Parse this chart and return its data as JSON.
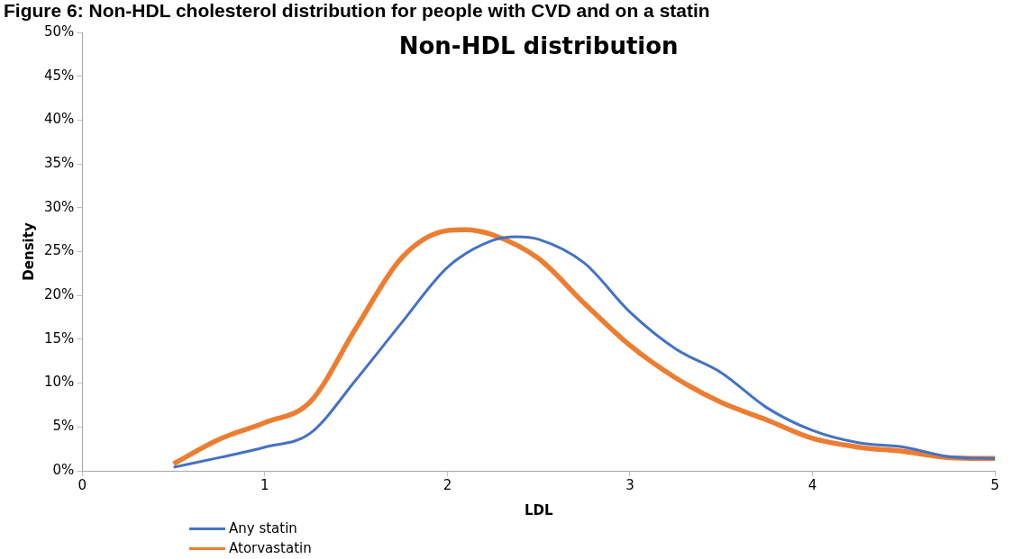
{
  "chart_data": {
    "type": "line",
    "title": "Non-HDL distribution",
    "xlabel": "LDL",
    "ylabel": "Density",
    "annotations": [
      "Figure 6: Non-HDL cholesterol distribution for people with CVD and on a statin"
    ],
    "xlim": [
      0,
      5
    ],
    "xticks": [
      0,
      1,
      2,
      3,
      4,
      5
    ],
    "ylim": [
      0,
      50
    ],
    "yticks": [
      {
        "value": 0,
        "label": "0%"
      },
      {
        "value": 5,
        "label": "5%"
      },
      {
        "value": 10,
        "label": "10%"
      },
      {
        "value": 15,
        "label": "15%"
      },
      {
        "value": 20,
        "label": "20%"
      },
      {
        "value": 25,
        "label": "25%"
      },
      {
        "value": 30,
        "label": "30%"
      },
      {
        "value": 35,
        "label": "35%"
      },
      {
        "value": 40,
        "label": "40%"
      },
      {
        "value": 45,
        "label": "45%"
      },
      {
        "value": 50,
        "label": "50%"
      }
    ],
    "grid": false,
    "legend": "bottom left",
    "marker": "none",
    "line_style": "solid",
    "series": [
      {
        "name": "Any statin",
        "color": "#4472c4",
        "x": [
          0.5,
          0.75,
          1,
          1.25,
          1.5,
          1.75,
          2,
          2.25,
          2.38,
          2.5,
          2.75,
          3,
          3.25,
          3.5,
          3.75,
          4,
          4.25,
          4.5,
          4.75,
          5
        ],
        "values": [
          0.4,
          1.5,
          2.7,
          4.3,
          10.4,
          16.9,
          23.2,
          26.3,
          26.7,
          26.4,
          23.7,
          18.1,
          13.9,
          11.2,
          7.2,
          4.6,
          3.2,
          2.7,
          1.6,
          1.4
        ]
      },
      {
        "name": "Atorvastatin",
        "color": "#ed7d31",
        "x": [
          0.5,
          0.75,
          1,
          1.25,
          1.5,
          1.75,
          2,
          2.1,
          2.25,
          2.5,
          2.75,
          3,
          3.25,
          3.5,
          3.75,
          4,
          4.25,
          4.5,
          4.75,
          5
        ],
        "values": [
          0.8,
          3.6,
          5.5,
          7.9,
          16.3,
          24.3,
          27.4,
          27.5,
          26.9,
          24.2,
          19.1,
          14.3,
          10.6,
          7.8,
          5.8,
          3.7,
          2.7,
          2.2,
          1.5,
          1.4
        ]
      }
    ]
  }
}
